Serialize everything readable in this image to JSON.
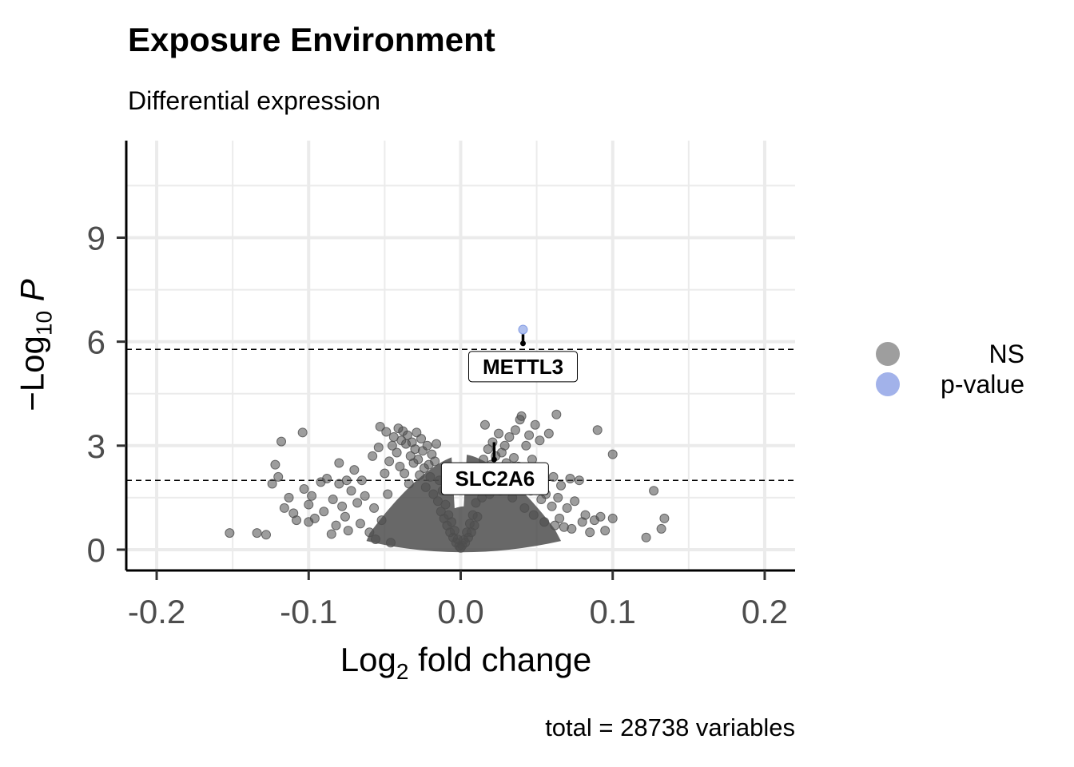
{
  "chart_data": {
    "type": "scatter",
    "title": "Exposure Environment",
    "subtitle": "Differential expression",
    "xlabel": "fold change",
    "xlabel_prefix": "Log",
    "xlabel_sub": "2",
    "ylabel_prefix": "−Log",
    "ylabel_sub": "10",
    "ylabel_italic": "P",
    "caption": "total = 28738 variables",
    "xlim": [
      -0.22,
      0.22
    ],
    "ylim": [
      -0.6,
      11.8
    ],
    "x_ticks": [
      -0.2,
      -0.1,
      0.0,
      0.1,
      0.2
    ],
    "x_tick_labels": [
      "-0.2",
      "-0.1",
      "0.0",
      "0.1",
      "0.2"
    ],
    "y_ticks": [
      0,
      3,
      6,
      9
    ],
    "y_tick_labels": [
      "0",
      "3",
      "6",
      "9"
    ],
    "grid": true,
    "legend_position": "right",
    "thresholds_y": [
      5.78,
      2.0
    ],
    "colors": {
      "NS": "#4d4d4d",
      "p-value": "#6f8ce0",
      "grid": "#ebebeb"
    },
    "series": [
      {
        "name": "NS",
        "color": "#4d4d4d",
        "points": [
          [
            -0.152,
            0.48
          ],
          [
            -0.134,
            0.48
          ],
          [
            -0.128,
            0.43
          ],
          [
            -0.124,
            1.9
          ],
          [
            -0.122,
            2.45
          ],
          [
            -0.12,
            2.1
          ],
          [
            -0.118,
            3.12
          ],
          [
            -0.116,
            1.2
          ],
          [
            -0.113,
            1.5
          ],
          [
            -0.11,
            1.05
          ],
          [
            -0.108,
            0.85
          ],
          [
            -0.104,
            3.38
          ],
          [
            -0.103,
            1.75
          ],
          [
            -0.1,
            1.3
          ],
          [
            -0.1,
            0.8
          ],
          [
            -0.098,
            1.55
          ],
          [
            -0.096,
            0.9
          ],
          [
            -0.092,
            1.95
          ],
          [
            -0.09,
            1.1
          ],
          [
            -0.088,
            2.05
          ],
          [
            -0.085,
            0.45
          ],
          [
            -0.084,
            1.45
          ],
          [
            -0.082,
            0.7
          ],
          [
            -0.08,
            1.9
          ],
          [
            -0.08,
            2.5
          ],
          [
            -0.078,
            1.25
          ],
          [
            -0.076,
            0.95
          ],
          [
            -0.075,
            2.0
          ],
          [
            -0.074,
            0.55
          ],
          [
            -0.072,
            1.7
          ],
          [
            -0.07,
            2.3
          ],
          [
            -0.068,
            1.35
          ],
          [
            -0.066,
            0.75
          ],
          [
            -0.065,
            2.0
          ],
          [
            -0.063,
            1.55
          ],
          [
            -0.06,
            0.5
          ],
          [
            -0.058,
            2.7
          ],
          [
            -0.057,
            1.2
          ],
          [
            -0.056,
            0.3
          ],
          [
            -0.054,
            2.95
          ],
          [
            -0.053,
            3.55
          ],
          [
            -0.052,
            0.85
          ],
          [
            -0.05,
            2.2
          ],
          [
            -0.049,
            3.4
          ],
          [
            -0.048,
            1.6
          ],
          [
            -0.047,
            2.55
          ],
          [
            -0.046,
            0.2
          ],
          [
            -0.045,
            3.0
          ],
          [
            -0.044,
            3.25
          ],
          [
            -0.042,
            2.8
          ],
          [
            -0.041,
            3.5
          ],
          [
            -0.04,
            2.4
          ],
          [
            -0.039,
            3.15
          ],
          [
            -0.038,
            3.42
          ],
          [
            -0.037,
            2.2
          ],
          [
            -0.036,
            3.05
          ],
          [
            -0.035,
            3.3
          ],
          [
            -0.034,
            1.9
          ],
          [
            -0.033,
            2.7
          ],
          [
            -0.032,
            3.1
          ],
          [
            -0.031,
            2.5
          ],
          [
            -0.03,
            2.9
          ],
          [
            -0.029,
            3.38
          ],
          [
            -0.028,
            2.6
          ],
          [
            -0.027,
            2.15
          ],
          [
            -0.026,
            3.2
          ],
          [
            -0.025,
            2.85
          ],
          [
            -0.024,
            2.35
          ],
          [
            -0.023,
            1.8
          ],
          [
            -0.022,
            3.0
          ],
          [
            -0.021,
            2.45
          ],
          [
            -0.02,
            2.1
          ],
          [
            -0.019,
            2.75
          ],
          [
            -0.018,
            1.6
          ],
          [
            -0.017,
            2.55
          ],
          [
            -0.016,
            3.05
          ],
          [
            -0.015,
            1.4
          ],
          [
            -0.014,
            2.0
          ],
          [
            -0.013,
            1.1
          ],
          [
            -0.012,
            1.7
          ],
          [
            -0.011,
            0.9
          ],
          [
            -0.01,
            1.3
          ],
          [
            -0.009,
            0.7
          ],
          [
            -0.008,
            1.0
          ],
          [
            -0.007,
            0.5
          ],
          [
            -0.006,
            0.8
          ],
          [
            -0.005,
            0.35
          ],
          [
            -0.004,
            0.55
          ],
          [
            -0.003,
            0.2
          ],
          [
            -0.002,
            0.3
          ],
          [
            -0.001,
            0.1
          ],
          [
            0.0,
            0.05
          ],
          [
            0.001,
            0.12
          ],
          [
            0.002,
            0.28
          ],
          [
            0.003,
            0.2
          ],
          [
            0.004,
            0.5
          ],
          [
            0.005,
            0.35
          ],
          [
            0.006,
            0.75
          ],
          [
            0.007,
            0.5
          ],
          [
            0.008,
            1.0
          ],
          [
            0.009,
            0.7
          ],
          [
            0.01,
            1.35
          ],
          [
            0.011,
            0.95
          ],
          [
            0.012,
            1.75
          ],
          [
            0.013,
            2.2
          ],
          [
            0.014,
            1.5
          ],
          [
            0.015,
            2.6
          ],
          [
            0.016,
            3.6
          ],
          [
            0.017,
            2.0
          ],
          [
            0.018,
            2.9
          ],
          [
            0.019,
            1.6
          ],
          [
            0.02,
            2.45
          ],
          [
            0.021,
            3.1
          ],
          [
            0.022,
            1.9
          ],
          [
            0.023,
            2.7
          ],
          [
            0.024,
            2.3
          ],
          [
            0.025,
            3.35
          ],
          [
            0.026,
            1.7
          ],
          [
            0.027,
            2.8
          ],
          [
            0.028,
            2.1
          ],
          [
            0.029,
            3.0
          ],
          [
            0.03,
            2.5
          ],
          [
            0.031,
            1.9
          ],
          [
            0.032,
            3.25
          ],
          [
            0.033,
            2.3
          ],
          [
            0.034,
            1.5
          ],
          [
            0.035,
            2.65
          ],
          [
            0.036,
            3.45
          ],
          [
            0.037,
            1.8
          ],
          [
            0.038,
            2.4
          ],
          [
            0.039,
            3.75
          ],
          [
            0.04,
            3.85
          ],
          [
            0.04,
            2.0
          ],
          [
            0.042,
            1.2
          ],
          [
            0.043,
            3.0
          ],
          [
            0.044,
            2.2
          ],
          [
            0.045,
            3.3
          ],
          [
            0.046,
            1.7
          ],
          [
            0.047,
            2.6
          ],
          [
            0.048,
            1.0
          ],
          [
            0.049,
            3.6
          ],
          [
            0.05,
            1.9
          ],
          [
            0.052,
            3.15
          ],
          [
            0.053,
            1.45
          ],
          [
            0.054,
            2.05
          ],
          [
            0.055,
            0.8
          ],
          [
            0.056,
            1.6
          ],
          [
            0.058,
            3.35
          ],
          [
            0.06,
            1.25
          ],
          [
            0.061,
            2.1
          ],
          [
            0.062,
            0.7
          ],
          [
            0.063,
            3.9
          ],
          [
            0.064,
            1.5
          ],
          [
            0.065,
            0.9
          ],
          [
            0.066,
            1.85
          ],
          [
            0.068,
            0.65
          ],
          [
            0.07,
            1.2
          ],
          [
            0.072,
            2.05
          ],
          [
            0.073,
            0.6
          ],
          [
            0.075,
            1.4
          ],
          [
            0.078,
            2.0
          ],
          [
            0.08,
            0.8
          ],
          [
            0.082,
            1.0
          ],
          [
            0.085,
            0.5
          ],
          [
            0.088,
            0.85
          ],
          [
            0.09,
            3.45
          ],
          [
            0.092,
            0.95
          ],
          [
            0.095,
            0.55
          ],
          [
            0.1,
            2.75
          ],
          [
            0.1,
            0.9
          ],
          [
            0.122,
            0.35
          ],
          [
            0.127,
            1.7
          ],
          [
            0.132,
            0.6
          ],
          [
            0.134,
            0.9
          ]
        ]
      },
      {
        "name": "p-value",
        "color": "#6f8ce0",
        "points": [
          [
            0.041,
            6.35
          ]
        ]
      }
    ],
    "labels": [
      {
        "text": "METTL3",
        "x": 0.041,
        "y": 5.95
      },
      {
        "text": "SLC2A6",
        "x": 0.022,
        "y": 2.6
      }
    ]
  },
  "legend": {
    "items": [
      {
        "label": "NS",
        "color": "#9e9e9e"
      },
      {
        "label": "p-value",
        "color": "#a2b2ea"
      }
    ]
  }
}
